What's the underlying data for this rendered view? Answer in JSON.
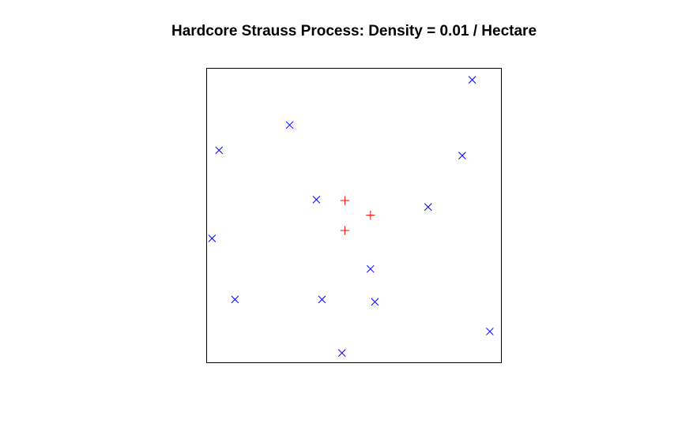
{
  "chart_data": {
    "type": "scatter",
    "title": "Hardcore Strauss Process: Density = 0.01 / Hectare",
    "xlabel": "",
    "ylabel": "",
    "xlim": [
      0,
      1
    ],
    "ylim": [
      0,
      1
    ],
    "grid": false,
    "axes_shown": false,
    "series": [
      {
        "marker": "x",
        "color": "#0000ff",
        "x": [
          0.902,
          0.281,
          0.041,
          0.868,
          0.372,
          0.752,
          0.017,
          0.556,
          0.095,
          0.391,
          0.571,
          0.962,
          0.459
        ],
        "y": [
          0.962,
          0.808,
          0.722,
          0.704,
          0.554,
          0.529,
          0.422,
          0.318,
          0.214,
          0.214,
          0.206,
          0.105,
          0.032
        ]
      },
      {
        "marker": "+",
        "color": "#ff0000",
        "x": [
          0.469,
          0.556,
          0.469
        ],
        "y": [
          0.551,
          0.501,
          0.449
        ]
      }
    ]
  }
}
